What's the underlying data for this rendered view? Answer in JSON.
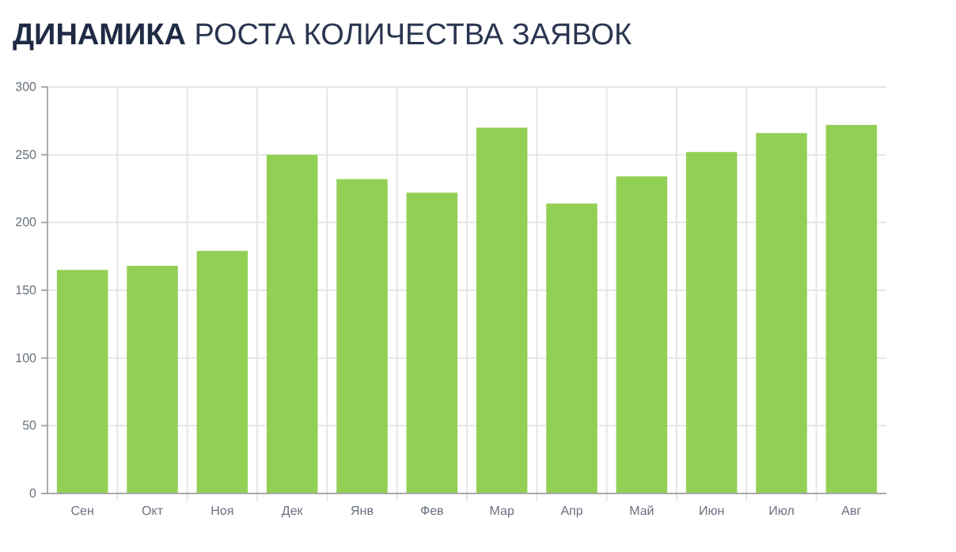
{
  "chart_data": {
    "type": "bar",
    "title": "ДИНАМИКА РОСТА КОЛИЧЕСТВА ЗАЯВОК",
    "categories": [
      "Сен",
      "Окт",
      "Ноя",
      "Дек",
      "Янв",
      "Фев",
      "Мар",
      "Апр",
      "Май",
      "Июн",
      "Июл",
      "Авг"
    ],
    "values": [
      165,
      168,
      179,
      250,
      232,
      222,
      270,
      214,
      234,
      252,
      266,
      272
    ],
    "color": "#92cf55",
    "ylim": [
      0,
      300
    ],
    "yticks": [
      0,
      50,
      100,
      150,
      200,
      250,
      300
    ],
    "grid": true
  }
}
